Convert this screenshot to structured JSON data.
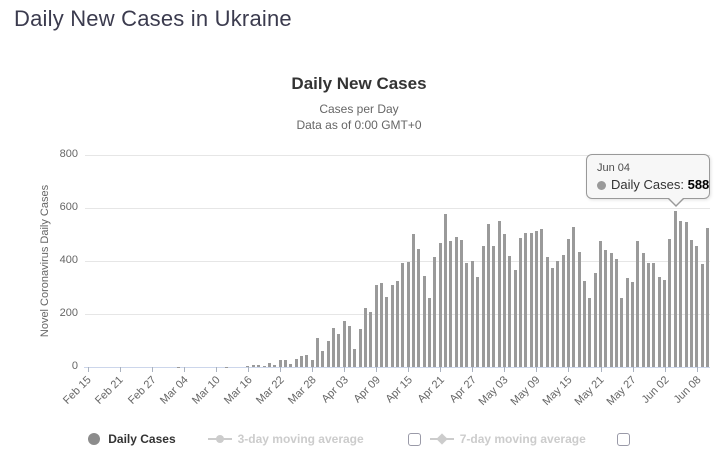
{
  "page": {
    "title": "Daily New Cases in Ukraine"
  },
  "chart": {
    "title": "Daily New Cases",
    "subtitle_line1": "Cases per Day",
    "subtitle_line2": "Data as of 0:00 GMT+0",
    "y_axis_title": "Novel Coronavirus Daily Cases",
    "colors": {
      "bar": "#9a9a9a",
      "grid": "#e6e6e6",
      "axis_line": "#ccd6eb",
      "axis_label": "#666666",
      "title_text": "#333333",
      "page_title": "#3b3b4e",
      "legend_disabled": "#cccccc",
      "tooltip_bg": "#f7f7f7",
      "tooltip_border": "#999999"
    }
  },
  "tooltip": {
    "date": "Jun 04",
    "series_label": "Daily Cases:",
    "value": "588"
  },
  "legend": {
    "items": [
      {
        "label": "Daily Cases",
        "state": "active",
        "marker": "circle",
        "has_checkbox": false
      },
      {
        "label": "3-day moving average",
        "state": "disabled",
        "marker": "line-circle",
        "has_checkbox": true,
        "checkbox_checked": false
      },
      {
        "label": "7-day moving average",
        "state": "disabled",
        "marker": "line-diamond",
        "has_checkbox": true,
        "checkbox_checked": false
      }
    ]
  },
  "chart_data": {
    "type": "bar",
    "title": "Daily New Cases",
    "subtitle": "Cases per Day — Data as of 0:00 GMT+0",
    "xlabel": "",
    "ylabel": "Novel Coronavirus Daily Cases",
    "ylim": [
      0,
      800
    ],
    "y_ticks": [
      0,
      200,
      400,
      600,
      800
    ],
    "grid": true,
    "legend_position": "bottom",
    "series_name": "Daily Cases",
    "x_tick_interval": 6,
    "x_tick_labels": [
      "Feb 15",
      "Feb 21",
      "Feb 27",
      "Mar 04",
      "Mar 10",
      "Mar 16",
      "Mar 22",
      "Mar 28",
      "Apr 03",
      "Apr 09",
      "Apr 15",
      "Apr 21",
      "Apr 27",
      "May 03",
      "May 09",
      "May 15",
      "May 21",
      "May 27",
      "Jun 02",
      "Jun 08"
    ],
    "dates": [
      "Feb 15",
      "Feb 16",
      "Feb 17",
      "Feb 18",
      "Feb 19",
      "Feb 20",
      "Feb 21",
      "Feb 22",
      "Feb 23",
      "Feb 24",
      "Feb 25",
      "Feb 26",
      "Feb 27",
      "Feb 28",
      "Feb 29",
      "Mar 01",
      "Mar 02",
      "Mar 03",
      "Mar 04",
      "Mar 05",
      "Mar 06",
      "Mar 07",
      "Mar 08",
      "Mar 09",
      "Mar 10",
      "Mar 11",
      "Mar 12",
      "Mar 13",
      "Mar 14",
      "Mar 15",
      "Mar 16",
      "Mar 17",
      "Mar 18",
      "Mar 19",
      "Mar 20",
      "Mar 21",
      "Mar 22",
      "Mar 23",
      "Mar 24",
      "Mar 25",
      "Mar 26",
      "Mar 27",
      "Mar 28",
      "Mar 29",
      "Mar 30",
      "Mar 31",
      "Apr 01",
      "Apr 02",
      "Apr 03",
      "Apr 04",
      "Apr 05",
      "Apr 06",
      "Apr 07",
      "Apr 08",
      "Apr 09",
      "Apr 10",
      "Apr 11",
      "Apr 12",
      "Apr 13",
      "Apr 14",
      "Apr 15",
      "Apr 16",
      "Apr 17",
      "Apr 18",
      "Apr 19",
      "Apr 20",
      "Apr 21",
      "Apr 22",
      "Apr 23",
      "Apr 24",
      "Apr 25",
      "Apr 26",
      "Apr 27",
      "Apr 28",
      "Apr 29",
      "Apr 30",
      "May 01",
      "May 02",
      "May 03",
      "May 04",
      "May 05",
      "May 06",
      "May 07",
      "May 08",
      "May 09",
      "May 10",
      "May 11",
      "May 12",
      "May 13",
      "May 14",
      "May 15",
      "May 16",
      "May 17",
      "May 18",
      "May 19",
      "May 20",
      "May 21",
      "May 22",
      "May 23",
      "May 24",
      "May 25",
      "May 26",
      "May 27",
      "May 28",
      "May 29",
      "May 30",
      "May 31",
      "Jun 01",
      "Jun 02",
      "Jun 03",
      "Jun 04",
      "Jun 05",
      "Jun 06",
      "Jun 07",
      "Jun 08",
      "Jun 09",
      "Jun 10"
    ],
    "values": [
      0,
      0,
      0,
      0,
      0,
      0,
      0,
      0,
      0,
      0,
      0,
      0,
      0,
      0,
      0,
      0,
      0,
      1,
      0,
      0,
      0,
      0,
      0,
      0,
      0,
      0,
      2,
      0,
      0,
      0,
      4,
      7,
      7,
      5,
      15,
      6,
      26,
      26,
      11,
      32,
      43,
      46,
      26,
      109,
      62,
      97,
      149,
      125,
      175,
      154,
      68,
      143,
      224,
      206,
      311,
      318,
      266,
      308,
      325,
      392,
      397,
      501,
      444,
      343,
      261,
      415,
      467,
      578,
      477,
      492,
      478,
      392,
      401,
      339,
      456,
      540,
      455,
      550,
      502,
      418,
      366,
      487,
      507,
      504,
      515,
      522,
      416,
      375,
      402,
      422,
      483,
      528,
      433,
      325,
      260,
      354,
      476,
      442,
      432,
      406,
      259,
      335,
      321,
      477,
      429,
      393,
      394,
      340,
      328,
      485,
      588,
      550,
      547,
      480,
      455,
      390,
      523
    ],
    "highlight": {
      "date": "Jun 04",
      "value": 588
    }
  }
}
